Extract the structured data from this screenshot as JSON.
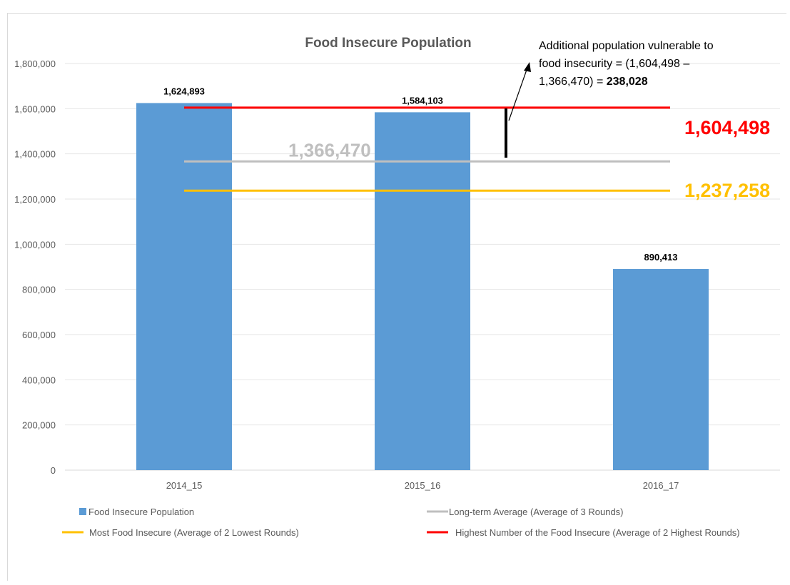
{
  "chart_data": {
    "type": "bar",
    "title": "Food Insecure Population",
    "categories": [
      "2014_15",
      "2015_16",
      "2016_17"
    ],
    "series": [
      {
        "name": "Food Insecure Population",
        "values": [
          1624893,
          1584103,
          890413
        ],
        "color": "#5b9bd5"
      }
    ],
    "data_labels": [
      "1,624,893",
      "1,584,103",
      "890,413"
    ],
    "reference_lines": [
      {
        "name": "Long-term Average (Average of 3 Rounds)",
        "value": 1366470,
        "color": "#bfbfbf",
        "label": "1,366,470"
      },
      {
        "name": "Most Food Insecure (Average of 2 Lowest Rounds)",
        "value": 1237258,
        "color": "#ffc000",
        "label": "1,237,258"
      },
      {
        "name": "Highest Number of the Food Insecure (Average of 2 Highest Rounds)",
        "value": 1604498,
        "color": "#ff0000",
        "label": "1,604,498"
      }
    ],
    "ylim": [
      0,
      1800000
    ],
    "y_ticks": [
      "0",
      "200,000",
      "400,000",
      "600,000",
      "800,000",
      "1,000,000",
      "1,200,000",
      "1,400,000",
      "1,600,000",
      "1,800,000"
    ],
    "grid": true,
    "legend_position": "bottom",
    "annotation": {
      "line1": "Additional population vulnerable to",
      "line2": "food insecurity = (1,604,498 –",
      "line3_prefix": "1,366,470) = ",
      "line3_bold": "238,028"
    },
    "xlabel": "",
    "ylabel": ""
  }
}
